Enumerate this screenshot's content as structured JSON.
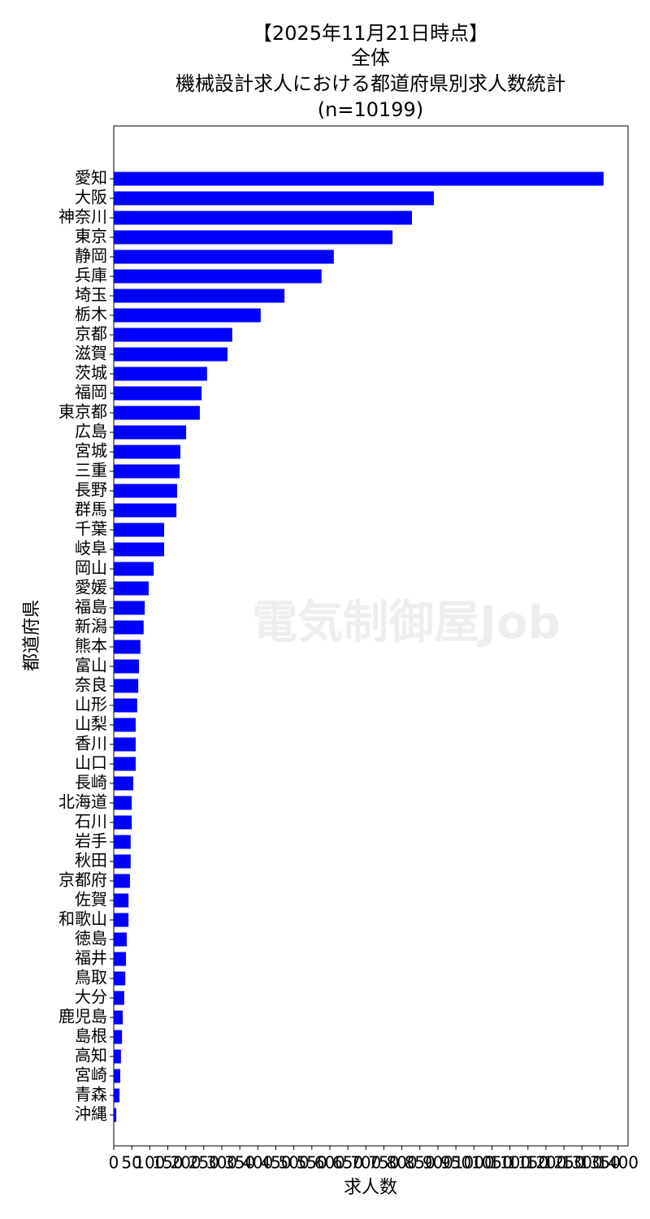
{
  "chart_data": {
    "type": "barh",
    "title": [
      "【2025年11月21日時点】",
      "全体",
      "機械設計求人における都道府県別求人数統計",
      "(n=10199)"
    ],
    "xlabel": "求人数",
    "ylabel": "都道府県",
    "watermark": "電気制御屋Job",
    "color": "#0000ff",
    "categories": [
      "愛知",
      "大阪",
      "神奈川",
      "東京",
      "静岡",
      "兵庫",
      "埼玉",
      "栃木",
      "京都",
      "滋賀",
      "茨城",
      "福岡",
      "東京都",
      "広島",
      "宮城",
      "三重",
      "長野",
      "群馬",
      "千葉",
      "岐阜",
      "岡山",
      "愛媛",
      "福島",
      "新潟",
      "熊本",
      "富山",
      "奈良",
      "山形",
      "山梨",
      "香川",
      "山口",
      "長崎",
      "北海道",
      "石川",
      "岩手",
      "秋田",
      "京都府",
      "佐賀",
      "和歌山",
      "徳島",
      "福井",
      "鳥取",
      "大分",
      "鹿児島",
      "島根",
      "高知",
      "宮崎",
      "青森",
      "沖縄"
    ],
    "values": [
      1360,
      889,
      828,
      774,
      611,
      577,
      474,
      408,
      329,
      316,
      259,
      244,
      239,
      201,
      185,
      183,
      176,
      174,
      140,
      140,
      111,
      97,
      86,
      83,
      74,
      70,
      68,
      65,
      61,
      61,
      61,
      54,
      50,
      50,
      47,
      47,
      45,
      41,
      41,
      36,
      34,
      32,
      29,
      25,
      23,
      20,
      18,
      16,
      7
    ],
    "xlim": [
      0,
      1428
    ],
    "xticks": [
      0,
      50,
      100,
      150,
      200,
      250,
      300,
      350,
      400,
      450,
      500,
      550,
      600,
      650,
      700,
      750,
      800,
      850,
      900,
      950,
      1000,
      1050,
      1100,
      1150,
      1200,
      1250,
      1300,
      1350,
      1400
    ]
  }
}
